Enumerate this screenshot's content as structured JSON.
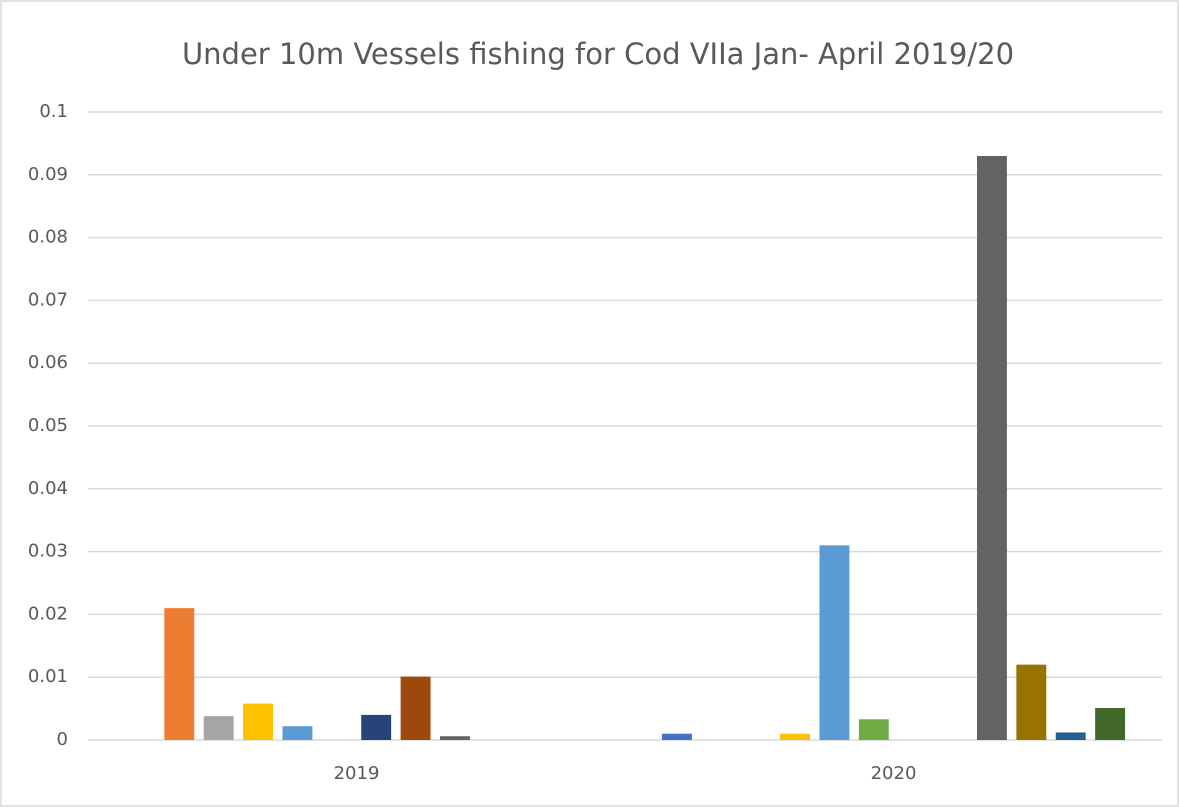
{
  "chart_data": {
    "type": "bar",
    "title": "Under 10m Vessels fishing for Cod VIIa Jan- April 2019/20",
    "categories": [
      "2019",
      "2020"
    ],
    "series": [
      {
        "color": "#4472c4",
        "values": [
          0,
          0.001
        ]
      },
      {
        "color": "#ed7d31",
        "values": [
          0.021,
          0
        ]
      },
      {
        "color": "#a5a5a5",
        "values": [
          0.0038,
          0
        ]
      },
      {
        "color": "#ffc000",
        "values": [
          0.0058,
          0.001
        ]
      },
      {
        "color": "#5b9bd5",
        "values": [
          0.0022,
          0.031
        ]
      },
      {
        "color": "#70ad47",
        "values": [
          0,
          0.0033
        ]
      },
      {
        "color": "#264478",
        "values": [
          0.004,
          0
        ]
      },
      {
        "color": "#9e480e",
        "values": [
          0.0101,
          0
        ]
      },
      {
        "color": "#636363",
        "values": [
          0.0006,
          0.093
        ]
      },
      {
        "color": "#997300",
        "values": [
          0,
          0.012
        ]
      },
      {
        "color": "#255e91",
        "values": [
          0,
          0.0012
        ]
      },
      {
        "color": "#43682b",
        "values": [
          0,
          0.0051
        ]
      }
    ],
    "ylim": [
      0,
      0.1
    ],
    "yticks": [
      0,
      0.01,
      0.02,
      0.03,
      0.04,
      0.05,
      0.06,
      0.07,
      0.08,
      0.09,
      0.1
    ],
    "grid": true
  }
}
